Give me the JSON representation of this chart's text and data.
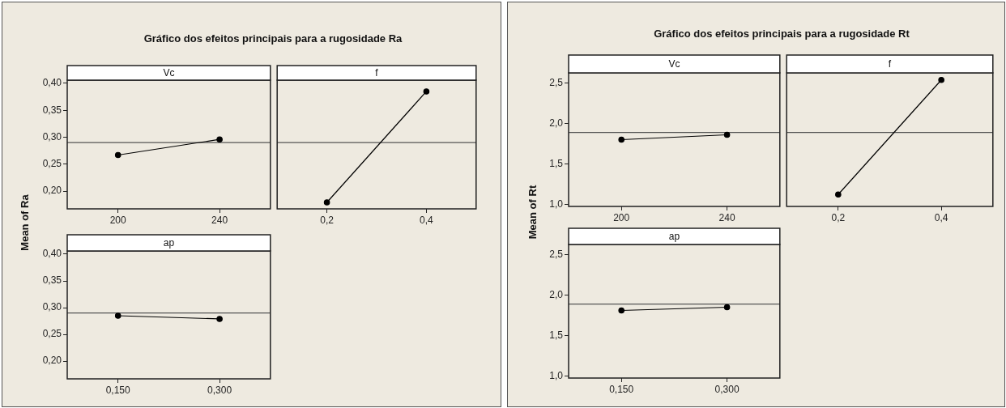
{
  "chart_data": [
    {
      "type": "line",
      "title": "Gráfico dos efeitos principais para a rugosidade Ra",
      "ylabel": "Mean of Ra",
      "subtitle": "Vc",
      "categories": [
        "200",
        "240"
      ],
      "series": [
        {
          "color": "#000000",
          "values": [
            0.267,
            0.296
          ]
        }
      ],
      "ylim": [
        0.167,
        0.406
      ],
      "yticks": [
        {
          "value": 0.2,
          "label": "0,20"
        },
        {
          "value": 0.25,
          "label": "0,25"
        },
        {
          "value": 0.3,
          "label": "0,30"
        },
        {
          "value": 0.35,
          "label": "0,35"
        },
        {
          "value": 0.4,
          "label": "0,40"
        }
      ],
      "ref_lines": [
        {
          "axis": "y",
          "value": 0.29,
          "color": "#555555"
        }
      ],
      "marker": "circle"
    },
    {
      "type": "line",
      "subtitle": "f",
      "categories": [
        "0,2",
        "0,4"
      ],
      "series": [
        {
          "color": "#000000",
          "values": [
            0.179,
            0.385
          ]
        }
      ],
      "ylim": [
        0.167,
        0.406
      ],
      "ref_lines": [
        {
          "axis": "y",
          "value": 0.29,
          "color": "#555555"
        }
      ],
      "marker": "circle",
      "tick_labels": "x"
    },
    {
      "type": "line",
      "subtitle": "ap",
      "categories": [
        "0,150",
        "0,300"
      ],
      "series": [
        {
          "color": "#000000",
          "values": [
            0.285,
            0.279
          ]
        }
      ],
      "ylim": [
        0.167,
        0.406
      ],
      "yticks": [
        {
          "value": 0.2,
          "label": "0,20"
        },
        {
          "value": 0.25,
          "label": "0,25"
        },
        {
          "value": 0.3,
          "label": "0,30"
        },
        {
          "value": 0.35,
          "label": "0,35"
        },
        {
          "value": 0.4,
          "label": "0,40"
        }
      ],
      "ref_lines": [
        {
          "axis": "y",
          "value": 0.29,
          "color": "#555555"
        }
      ],
      "marker": "circle"
    },
    {
      "type": "line",
      "title": "Gráfico dos efeitos principais para a rugosidade Rt",
      "ylabel": "Mean of Rt",
      "subtitle": "Vc",
      "categories": [
        "200",
        "240"
      ],
      "series": [
        {
          "color": "#000000",
          "values": [
            1.8,
            1.86
          ]
        }
      ],
      "ylim": [
        0.972,
        2.628
      ],
      "yticks": [
        {
          "value": 1,
          "label": "1,0"
        },
        {
          "value": 1.5,
          "label": "1,5"
        },
        {
          "value": 2,
          "label": "2,0"
        },
        {
          "value": 2.5,
          "label": "2,5"
        }
      ],
      "ref_lines": [
        {
          "axis": "y",
          "value": 1.89,
          "color": "#555555"
        }
      ],
      "marker": "circle"
    },
    {
      "type": "line",
      "subtitle": "f",
      "categories": [
        "0,2",
        "0,4"
      ],
      "series": [
        {
          "color": "#000000",
          "values": [
            1.12,
            2.54
          ]
        }
      ],
      "ylim": [
        0.972,
        2.628
      ],
      "ref_lines": [
        {
          "axis": "y",
          "value": 1.89,
          "color": "#555555"
        }
      ],
      "marker": "circle",
      "tick_labels": "x"
    },
    {
      "type": "line",
      "subtitle": "ap",
      "categories": [
        "0,150",
        "0,300"
      ],
      "series": [
        {
          "color": "#000000",
          "values": [
            1.81,
            1.85
          ]
        }
      ],
      "ylim": [
        0.972,
        2.628
      ],
      "yticks": [
        {
          "value": 1,
          "label": "1,0"
        },
        {
          "value": 1.5,
          "label": "1,5"
        },
        {
          "value": 2,
          "label": "2,0"
        },
        {
          "value": 2.5,
          "label": "2,5"
        }
      ],
      "ref_lines": [
        {
          "axis": "y",
          "value": 1.89,
          "color": "#555555"
        }
      ],
      "marker": "circle"
    }
  ]
}
